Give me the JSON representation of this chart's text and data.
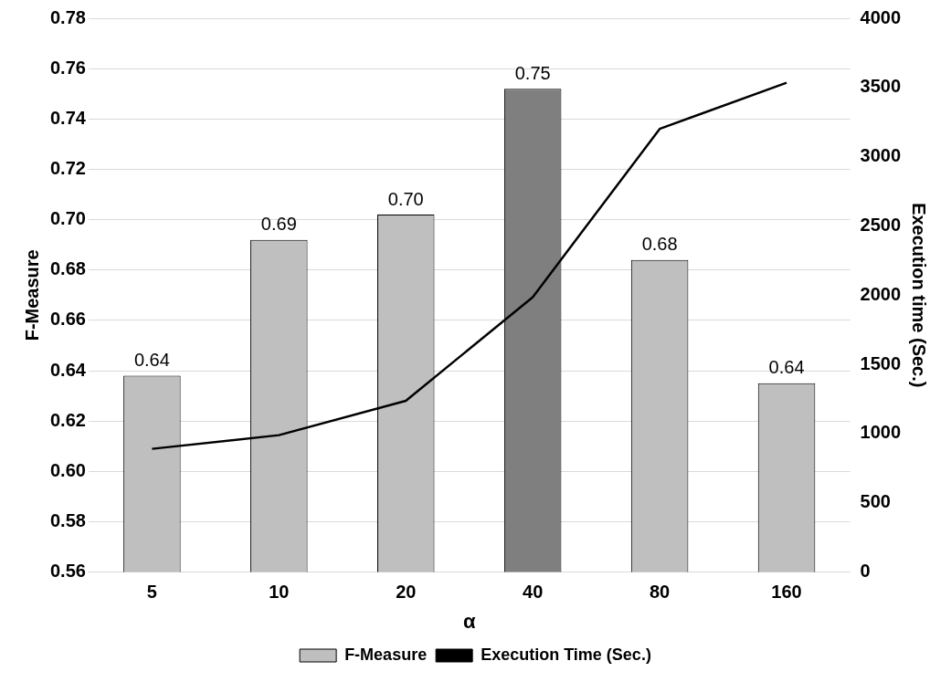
{
  "chart_data": {
    "type": "bar",
    "xlabel": "α",
    "ylabel": "F-Measure",
    "y2label": "Execution time (Sec.)",
    "categories": [
      "5",
      "10",
      "20",
      "40",
      "80",
      "160"
    ],
    "series": [
      {
        "name": "F-Measure",
        "color": "#bfbfbf",
        "colors": [
          "#bfbfbf",
          "#bfbfbf",
          "#bfbfbf",
          "#7f7f7f",
          "#bfbfbf",
          "#bfbfbf"
        ],
        "values": [
          0.638,
          0.692,
          0.702,
          0.752,
          0.684,
          0.635
        ],
        "value_labels": [
          "0.64",
          "0.69",
          "0.70",
          "0.75",
          "0.68",
          "0.64"
        ]
      },
      {
        "name": "Execution Time (Sec.)",
        "type": "line",
        "axis": "y2",
        "color": "#000000",
        "values": [
          890,
          989,
          1237,
          1986,
          3201,
          3534
        ]
      }
    ],
    "ylim": [
      0.56,
      0.78
    ],
    "yticks": [
      0.56,
      0.58,
      {
        "value": 0.6,
        "label": "0.60"
      },
      0.62,
      0.64,
      0.66,
      0.68,
      {
        "value": 0.7,
        "label": "0.70"
      },
      0.72,
      0.74,
      0.76,
      0.78
    ],
    "y2lim": [
      0,
      4000
    ],
    "y2ticks": [
      0,
      500,
      1000,
      1500,
      2000,
      2500,
      3000,
      3500,
      4000
    ],
    "grid": "y",
    "legend": "bottom"
  }
}
